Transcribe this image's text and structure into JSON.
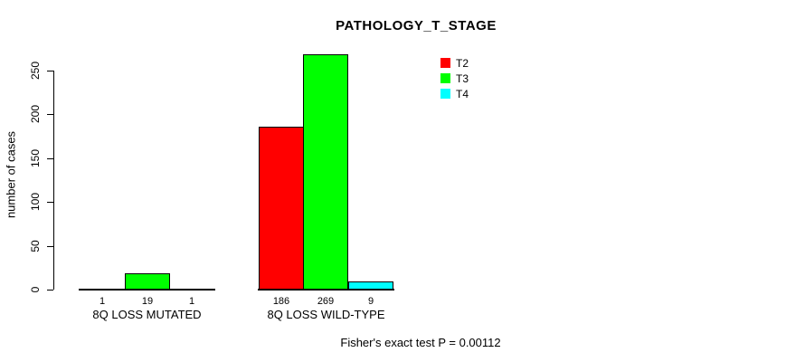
{
  "chart_data": {
    "type": "bar",
    "title": "PATHOLOGY_T_STAGE",
    "ylabel": "number of cases",
    "xlabel": "",
    "ylim": [
      0,
      250
    ],
    "yticks": [
      0,
      50,
      100,
      150,
      200,
      250
    ],
    "grid": false,
    "legend_position": "top-right",
    "categories": [
      "8Q LOSS MUTATED",
      "8Q LOSS WILD-TYPE"
    ],
    "series": [
      {
        "name": "T2",
        "color": "#ff0000",
        "values": [
          1,
          186
        ]
      },
      {
        "name": "T3",
        "color": "#00ff00",
        "values": [
          19,
          269
        ]
      },
      {
        "name": "T4",
        "color": "#00ffff",
        "values": [
          1,
          9
        ]
      }
    ],
    "annotation": "Fisher's exact test P = 0.00112",
    "axis_color": "#000000",
    "background_color": "#ffffff"
  }
}
